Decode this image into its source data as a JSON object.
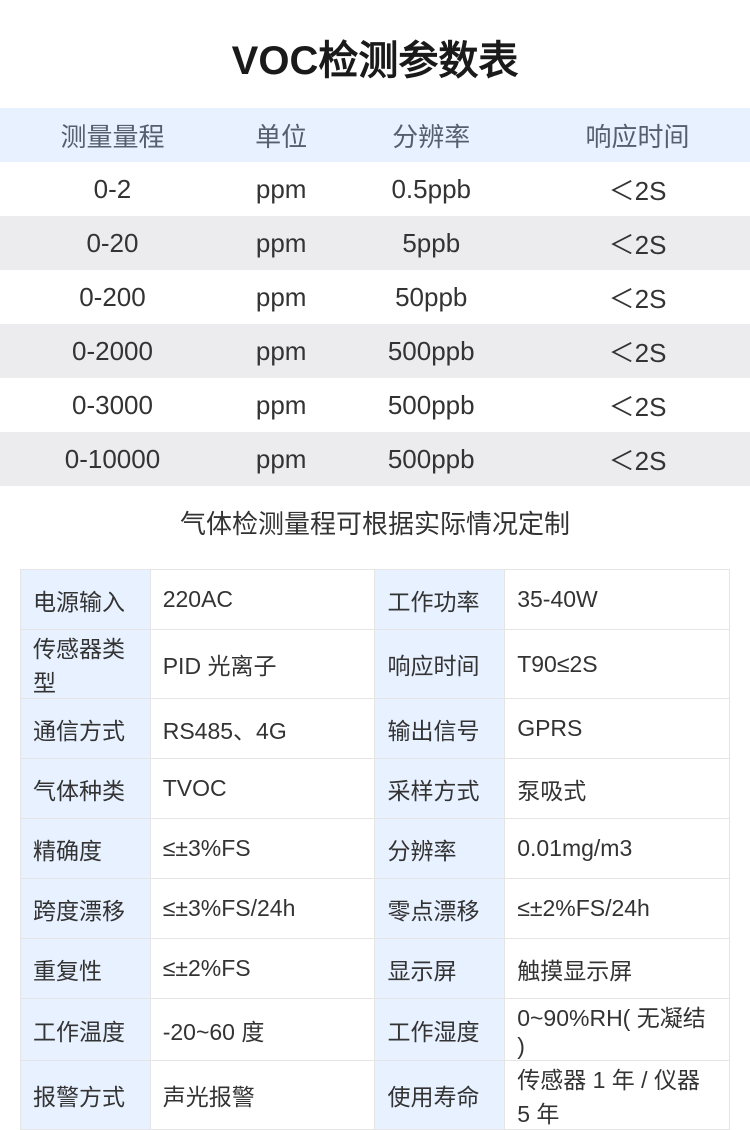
{
  "title": "VOC检测参数表",
  "range_table": {
    "headers": [
      "测量量程",
      "单位",
      "分辨率",
      "响应时间"
    ],
    "rows": [
      [
        "0-2",
        "ppm",
        "0.5ppb",
        "＜2S"
      ],
      [
        "0-20",
        "ppm",
        "5ppb",
        "＜2S"
      ],
      [
        "0-200",
        "ppm",
        "50ppb",
        "＜2S"
      ],
      [
        "0-2000",
        "ppm",
        "500ppb",
        "＜2S"
      ],
      [
        "0-3000",
        "ppm",
        "500ppb",
        "＜2S"
      ],
      [
        "0-10000",
        "ppm",
        "500ppb",
        "＜2S"
      ]
    ],
    "header_bg": "#e8f1ff",
    "alt_row_bg": "#ececee",
    "header_text_color": "#555f6d",
    "cell_text_color": "#333333",
    "fontsize": 26
  },
  "note": "气体检测量程可根据实际情况定制",
  "spec_table": {
    "label_bg": "#e8f1ff",
    "border_color": "#e5e5e5",
    "fontsize": 23,
    "rows": [
      [
        {
          "label": "电源输入",
          "value": "220AC"
        },
        {
          "label": "工作功率",
          "value": "35-40W"
        }
      ],
      [
        {
          "label": "传感器类型",
          "value": "PID 光离子"
        },
        {
          "label": "响应时间",
          "value": "T90≤2S"
        }
      ],
      [
        {
          "label": "通信方式",
          "value": "RS485、4G"
        },
        {
          "label": "输出信号",
          "value": "GPRS"
        }
      ],
      [
        {
          "label": "气体种类",
          "value": "TVOC"
        },
        {
          "label": "采样方式",
          "value": "泵吸式"
        }
      ],
      [
        {
          "label": "精确度",
          "value": "≤±3%FS"
        },
        {
          "label": "分辨率",
          "value": "0.01mg/m3"
        }
      ],
      [
        {
          "label": "跨度漂移",
          "value": "≤±3%FS/24h"
        },
        {
          "label": "零点漂移",
          "value": "≤±2%FS/24h"
        }
      ],
      [
        {
          "label": "重复性",
          "value": "≤±2%FS"
        },
        {
          "label": "显示屏",
          "value": "触摸显示屏"
        }
      ],
      [
        {
          "label": "工作温度",
          "value": "-20~60 度"
        },
        {
          "label": "工作湿度",
          "value": "0~90%RH( 无凝结 )"
        }
      ],
      [
        {
          "label": "报警方式",
          "value": "声光报警"
        },
        {
          "label": "使用寿命",
          "value": "传感器 1 年 / 仪器 5 年"
        }
      ]
    ]
  }
}
